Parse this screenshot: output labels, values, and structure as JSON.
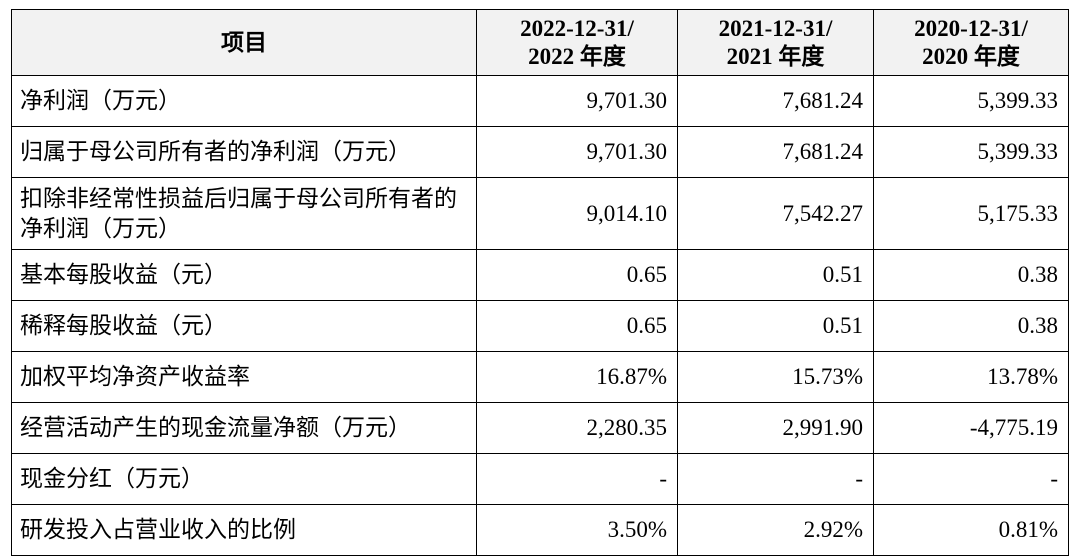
{
  "table": {
    "headers": {
      "item": "项目",
      "col1": [
        "2022-12-31/",
        "2022 年度"
      ],
      "col2": [
        "2021-12-31/",
        "2021 年度"
      ],
      "col3": [
        "2020-12-31/",
        "2020 年度"
      ]
    },
    "rows": [
      {
        "label": "净利润（万元）",
        "v1": "9,701.30",
        "v2": "7,681.24",
        "v3": "5,399.33"
      },
      {
        "label": "归属于母公司所有者的净利润（万元）",
        "v1": "9,701.30",
        "v2": "7,681.24",
        "v3": "5,399.33"
      },
      {
        "label": "扣除非经常性损益后归属于母公司所有者的净利润（万元）",
        "v1": "9,014.10",
        "v2": "7,542.27",
        "v3": "5,175.33"
      },
      {
        "label": "基本每股收益（元）",
        "v1": "0.65",
        "v2": "0.51",
        "v3": "0.38"
      },
      {
        "label": "稀释每股收益（元）",
        "v1": "0.65",
        "v2": "0.51",
        "v3": "0.38"
      },
      {
        "label": "加权平均净资产收益率",
        "v1": "16.87%",
        "v2": "15.73%",
        "v3": "13.78%"
      },
      {
        "label": "经营活动产生的现金流量净额（万元）",
        "v1": "2,280.35",
        "v2": "2,991.90",
        "v3": "-4,775.19"
      },
      {
        "label": "现金分红（万元）",
        "v1": "-",
        "v2": "-",
        "v3": "-"
      },
      {
        "label": "研发投入占营业收入的比例",
        "v1": "3.50%",
        "v2": "2.92%",
        "v3": "0.81%"
      }
    ]
  }
}
